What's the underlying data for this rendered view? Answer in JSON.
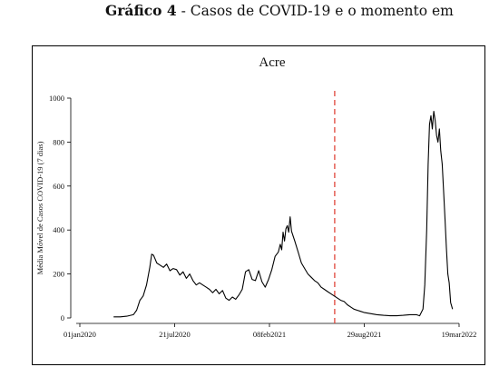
{
  "header": {
    "figure_label": "Gráfico 4",
    "figure_caption": " - Casos de COVID-19 e o momento em"
  },
  "chart_data": {
    "type": "line",
    "title": "Acre",
    "xlabel": "",
    "ylabel": "Média Móvel de Casos COVID-19 (7 dias)",
    "x_ticks": [
      "01jan2020",
      "21jul2020",
      "08feb2021",
      "29aug2021",
      "19mar2022"
    ],
    "y_ticks": [
      "0",
      "200",
      "400",
      "600",
      "800",
      "1000"
    ],
    "xlim": [
      "2020-01-01",
      "2022-03-19"
    ],
    "ylim": [
      0,
      1000
    ],
    "grid": false,
    "vertical_line": {
      "x": "2021-06-27",
      "color": "#e0453a",
      "style": "dashed"
    },
    "series": [
      {
        "color": "#000000",
        "x": [
          "2020-03-13",
          "2020-03-27",
          "2020-04-10",
          "2020-04-24",
          "2020-05-01",
          "2020-05-08",
          "2020-05-15",
          "2020-05-22",
          "2020-05-29",
          "2020-06-02",
          "2020-06-06",
          "2020-06-09",
          "2020-06-13",
          "2020-06-20",
          "2020-06-27",
          "2020-07-04",
          "2020-07-11",
          "2020-07-18",
          "2020-07-25",
          "2020-08-01",
          "2020-08-08",
          "2020-08-15",
          "2020-08-22",
          "2020-08-29",
          "2020-09-05",
          "2020-09-12",
          "2020-09-19",
          "2020-09-26",
          "2020-10-03",
          "2020-10-10",
          "2020-10-17",
          "2020-10-24",
          "2020-10-31",
          "2020-11-07",
          "2020-11-14",
          "2020-11-21",
          "2020-11-28",
          "2020-12-05",
          "2020-12-12",
          "2020-12-19",
          "2020-12-26",
          "2021-01-02",
          "2021-01-09",
          "2021-01-16",
          "2021-01-23",
          "2021-01-30",
          "2021-02-06",
          "2021-02-13",
          "2021-02-20",
          "2021-02-27",
          "2021-03-03",
          "2021-03-06",
          "2021-03-09",
          "2021-03-12",
          "2021-03-15",
          "2021-03-18",
          "2021-03-21",
          "2021-03-24",
          "2021-03-27",
          "2021-04-03",
          "2021-04-10",
          "2021-04-17",
          "2021-04-24",
          "2021-05-01",
          "2021-05-08",
          "2021-05-15",
          "2021-05-22",
          "2021-05-29",
          "2021-06-05",
          "2021-06-12",
          "2021-06-19",
          "2021-06-26",
          "2021-07-03",
          "2021-07-10",
          "2021-07-17",
          "2021-07-24",
          "2021-07-31",
          "2021-08-07",
          "2021-08-14",
          "2021-08-21",
          "2021-08-28",
          "2021-09-11",
          "2021-09-25",
          "2021-10-09",
          "2021-10-23",
          "2021-11-06",
          "2021-11-20",
          "2021-12-04",
          "2021-12-18",
          "2021-12-25",
          "2022-01-01",
          "2022-01-05",
          "2022-01-09",
          "2022-01-12",
          "2022-01-15",
          "2022-01-18",
          "2022-01-21",
          "2022-01-24",
          "2022-01-27",
          "2022-01-30",
          "2022-02-02",
          "2022-02-05",
          "2022-02-08",
          "2022-02-11",
          "2022-02-14",
          "2022-02-17",
          "2022-02-20",
          "2022-02-23",
          "2022-02-26",
          "2022-03-01",
          "2022-03-05"
        ],
        "y": [
          5,
          5,
          8,
          15,
          35,
          80,
          100,
          150,
          230,
          290,
          285,
          270,
          250,
          240,
          230,
          245,
          215,
          225,
          220,
          195,
          210,
          180,
          200,
          170,
          150,
          160,
          150,
          140,
          130,
          115,
          130,
          110,
          125,
          90,
          80,
          95,
          85,
          105,
          130,
          210,
          220,
          175,
          170,
          215,
          165,
          140,
          175,
          220,
          280,
          300,
          335,
          310,
          390,
          350,
          405,
          420,
          390,
          460,
          395,
          350,
          300,
          250,
          225,
          200,
          185,
          170,
          160,
          140,
          130,
          120,
          110,
          100,
          90,
          80,
          75,
          60,
          50,
          40,
          35,
          30,
          25,
          20,
          15,
          12,
          10,
          10,
          12,
          15,
          15,
          10,
          40,
          150,
          400,
          700,
          880,
          920,
          860,
          940,
          900,
          830,
          800,
          860,
          760,
          700,
          580,
          450,
          320,
          200,
          160,
          70,
          40
        ]
      }
    ]
  }
}
